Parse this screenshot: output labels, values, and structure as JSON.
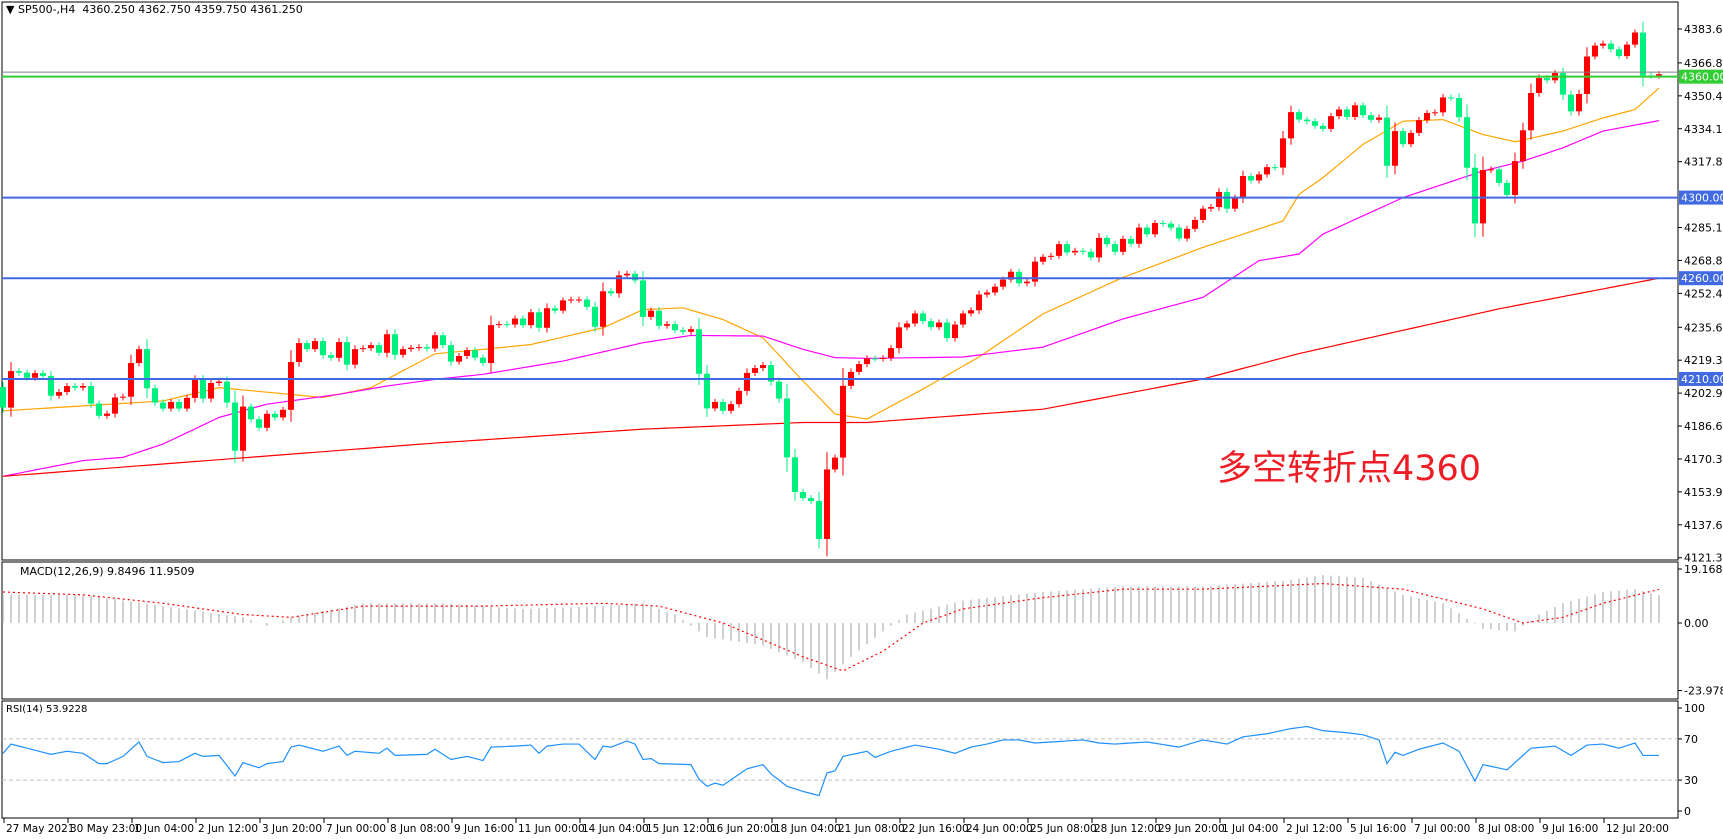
{
  "header": {
    "symbol": "SP500-,H4",
    "ohlc": "4360.250 4362.750 4359.750 4361.250",
    "collapse_icon": "triangle-down-icon"
  },
  "annotation": "多空转折点4360",
  "colors": {
    "bull_candle": "#ff0000",
    "bear_candle": "#00f080",
    "ma_fast": "#ffa500",
    "ma_mid": "#ff00ff",
    "ma_slow": "#ff0000",
    "level_line": "#4169e1",
    "pivot_line": "#32cd32",
    "macd_hist": "#c0c0c0",
    "macd_signal": "#ff0000",
    "rsi_line": "#1e90ff"
  },
  "chart_data": [
    {
      "type": "candlestick",
      "symbol": "SP500-",
      "timeframe": "H4",
      "last_bar": {
        "open": 4360.25,
        "high": 4362.75,
        "low": 4359.75,
        "close": 4361.25
      },
      "close": [
        4195.8,
        4213.9,
        4213.1,
        4210.6,
        4212.9,
        4211.5,
        4201.7,
        4203.5,
        4206.5,
        4205.7,
        4206.5,
        4197.8,
        4191.7,
        4192.8,
        4200.8,
        4201.2,
        4217.9,
        4224.8,
        4205.4,
        4198.3,
        4195.3,
        4198.6,
        4195.3,
        4200.6,
        4209.6,
        4200.3,
        4208.0,
        4208.7,
        4198.3,
        4174.4,
        4196.3,
        4190.0,
        4185.8,
        4192.7,
        4190.9,
        4194.7,
        4218.4,
        4227.8,
        4224.8,
        4228.8,
        4221.8,
        4220.5,
        4228.3,
        4217.1,
        4224.8,
        4225.3,
        4226.8,
        4223.0,
        4232.2,
        4222.0,
        4224.8,
        4225.5,
        4225.8,
        4225.1,
        4231.7,
        4226.8,
        4218.6,
        4221.4,
        4224.3,
        4220.6,
        4217.9,
        4236.7,
        4237.2,
        4237.0,
        4240.0,
        4236.7,
        4243.1,
        4235.4,
        4245.1,
        4243.9,
        4249.0,
        4249.4,
        4249.4,
        4245.8,
        4235.9,
        4253.5,
        4252.5,
        4261.4,
        4262.2,
        4258.9,
        4240.8,
        4243.9,
        4236.4,
        4237.2,
        4234.2,
        4233.4,
        4234.7,
        4212.6,
        4195.4,
        4198.6,
        4194.2,
        4197.5,
        4204.1,
        4213.0,
        4215.4,
        4216.9,
        4208.7,
        4200.3,
        4171.1,
        4153.9,
        4150.9,
        4149.4,
        4130.6,
        4165.1,
        4171.0,
        4206.6,
        4213.5,
        4217.4,
        4220.2,
        4220.1,
        4220.4,
        4225.3,
        4235.6,
        4237.5,
        4242.5,
        4238.7,
        4235.7,
        4238.0,
        4230.3,
        4237.0,
        4242.5,
        4244.1,
        4251.9,
        4252.9,
        4255.8,
        4259.3,
        4263.2,
        4257.5,
        4258.3,
        4268.2,
        4270.6,
        4271.1,
        4276.9,
        4272.8,
        4273.6,
        4273.1,
        4270.3,
        4280.0,
        4276.9,
        4273.1,
        4279.5,
        4277.1,
        4285.1,
        4281.8,
        4287.4,
        4287.1,
        4285.1,
        4279.7,
        4284.5,
        4288.9,
        4294.5,
        4295.3,
        4302.8,
        4294.5,
        4300.0,
        4310.7,
        4308.5,
        4311.5,
        4315.1,
        4314.9,
        4329.4,
        4342.4,
        4338.7,
        4337.9,
        4335.6,
        4334.1,
        4340.4,
        4343.7,
        4340.0,
        4345.8,
        4340.9,
        4338.6,
        4339.7,
        4315.8,
        4333.0,
        4326.5,
        4332.1,
        4338.4,
        4342.0,
        4342.3,
        4349.7,
        4349.4,
        4339.9,
        4314.8,
        4287.2,
        4313.7,
        4314.0,
        4307.3,
        4301.3,
        4318.1,
        4333.4,
        4351.9,
        4359.3,
        4358.2,
        4361.8,
        4351.1,
        4342.8,
        4351.4,
        4370.0,
        4375.4,
        4376.4,
        4373.6,
        4370.2,
        4375.9,
        4381.9,
        4360.6,
        4360.5,
        4361.25
      ],
      "moving_averages": [
        {
          "color_key": "ma_fast",
          "points": [
            [
              0,
              4194.2
            ],
            [
              20,
              4199.1
            ],
            [
              27,
              4205.7
            ],
            [
              40,
              4200.8
            ],
            [
              46,
              4205.7
            ],
            [
              54,
              4222.5
            ],
            [
              60,
              4224.7
            ],
            [
              66,
              4227.1
            ],
            [
              75,
              4235.4
            ],
            [
              80,
              4244.4
            ],
            [
              85,
              4245.3
            ],
            [
              90,
              4239.5
            ],
            [
              95,
              4230.4
            ],
            [
              100,
              4209.0
            ],
            [
              104,
              4192.6
            ],
            [
              108,
              4190.1
            ],
            [
              115,
              4205.0
            ],
            [
              122,
              4220.9
            ],
            [
              130,
              4242.3
            ],
            [
              140,
              4260.4
            ],
            [
              150,
              4275.3
            ],
            [
              160,
              4288.4
            ],
            [
              162,
              4301.6
            ],
            [
              165,
              4309.9
            ],
            [
              170,
              4326.4
            ],
            [
              175,
              4337.9
            ],
            [
              180,
              4338.7
            ],
            [
              185,
              4331.3
            ],
            [
              189,
              4327.7
            ],
            [
              195,
              4333.0
            ],
            [
              200,
              4339.5
            ],
            [
              204,
              4343.7
            ],
            [
              207,
              4354.4
            ]
          ]
        },
        {
          "color_key": "ma_mid",
          "points": [
            [
              0,
              4161.7
            ],
            [
              10,
              4169.5
            ],
            [
              15,
              4171.1
            ],
            [
              20,
              4177.7
            ],
            [
              27,
              4190.9
            ],
            [
              33,
              4197.5
            ],
            [
              42,
              4202.4
            ],
            [
              48,
              4206.5
            ],
            [
              54,
              4209.8
            ],
            [
              60,
              4212.3
            ],
            [
              70,
              4218.9
            ],
            [
              80,
              4228.0
            ],
            [
              86,
              4231.6
            ],
            [
              95,
              4231.3
            ],
            [
              100,
              4224.7
            ],
            [
              104,
              4220.6
            ],
            [
              108,
              4220.2
            ],
            [
              120,
              4220.9
            ],
            [
              130,
              4225.8
            ],
            [
              140,
              4239.8
            ],
            [
              150,
              4250.5
            ],
            [
              157,
              4268.7
            ],
            [
              162,
              4272.0
            ],
            [
              165,
              4281.9
            ],
            [
              175,
              4300.0
            ],
            [
              185,
              4313.2
            ],
            [
              190,
              4318.1
            ],
            [
              195,
              4324.7
            ],
            [
              200,
              4333.0
            ],
            [
              207,
              4338.2
            ]
          ]
        },
        {
          "color_key": "ma_slow",
          "points": [
            [
              0,
              4161.7
            ],
            [
              54,
              4178.2
            ],
            [
              80,
              4185.1
            ],
            [
              100,
              4188.4
            ],
            [
              108,
              4188.4
            ],
            [
              130,
              4195.0
            ],
            [
              150,
              4210.0
            ],
            [
              162,
              4222.6
            ],
            [
              187,
              4244.8
            ],
            [
              207,
              4260.0
            ]
          ]
        }
      ],
      "horizontal_levels": [
        {
          "value": 4360,
          "label": "4360.000",
          "color_key": "pivot_line"
        },
        {
          "value": 4300,
          "label": "4300.000",
          "color_key": "level_line"
        },
        {
          "value": 4260,
          "label": "4260.000",
          "color_key": "level_line"
        },
        {
          "value": 4210,
          "label": "4210.000",
          "color_key": "level_line"
        }
      ],
      "y_ticks": [
        "4383.655",
        "4366.825",
        "4350.490",
        "4334.155",
        "4317.820",
        "4285.150",
        "4268.815",
        "4252.480",
        "4235.650",
        "4219.315",
        "4202.980",
        "4186.645",
        "4170.310",
        "4153.975",
        "4137.640",
        "4121.305"
      ],
      "ylim": [
        4121.305,
        4383.655
      ],
      "x_ticks": [
        "27 May 2021",
        "30 May 23:00",
        "1 Jun 04:00",
        "2 Jun 12:00",
        "3 Jun 20:00",
        "7 Jun 00:00",
        "8 Jun 08:00",
        "9 Jun 16:00",
        "11 Jun 00:00",
        "14 Jun 04:00",
        "15 Jun 12:00",
        "16 Jun 20:00",
        "18 Jun 04:00",
        "21 Jun 08:00",
        "22 Jun 16:00",
        "24 Jun 00:00",
        "25 Jun 08:00",
        "28 Jun 12:00",
        "29 Jun 20:00",
        "1 Jul 04:00",
        "2 Jul 12:00",
        "5 Jul 16:00",
        "7 Jul 00:00",
        "8 Jul 08:00",
        "9 Jul 16:00",
        "12 Jul 20:00"
      ]
    },
    {
      "type": "bar+line",
      "title": "MACD(12,26,9) 9.8496 11.9509",
      "y_ticks": [
        "19.1681",
        "0.00",
        "-23.9781"
      ],
      "ylim": [
        -23.9781,
        19.1681
      ],
      "histogram_points": [
        [
          0,
          10
        ],
        [
          10,
          10
        ],
        [
          20,
          6
        ],
        [
          30,
          2
        ],
        [
          33,
          -1
        ],
        [
          36,
          2
        ],
        [
          45,
          7
        ],
        [
          55,
          7
        ],
        [
          65,
          5
        ],
        [
          75,
          6
        ],
        [
          80,
          7
        ],
        [
          84,
          3
        ],
        [
          88,
          -5
        ],
        [
          95,
          -8
        ],
        [
          100,
          -14
        ],
        [
          103,
          -20
        ],
        [
          106,
          -12
        ],
        [
          110,
          -3
        ],
        [
          113,
          3
        ],
        [
          120,
          8
        ],
        [
          130,
          11
        ],
        [
          140,
          13
        ],
        [
          150,
          13
        ],
        [
          160,
          15
        ],
        [
          165,
          17
        ],
        [
          170,
          16
        ],
        [
          175,
          10
        ],
        [
          180,
          7
        ],
        [
          185,
          -2
        ],
        [
          189,
          -3
        ],
        [
          192,
          3
        ],
        [
          195,
          7
        ],
        [
          200,
          11
        ],
        [
          204,
          12
        ],
        [
          207,
          9.8496
        ]
      ],
      "signal_points": [
        [
          0,
          11
        ],
        [
          10,
          10
        ],
        [
          20,
          7
        ],
        [
          30,
          3
        ],
        [
          36,
          2
        ],
        [
          45,
          6
        ],
        [
          60,
          6
        ],
        [
          75,
          7
        ],
        [
          82,
          6
        ],
        [
          90,
          0
        ],
        [
          100,
          -12
        ],
        [
          105,
          -17
        ],
        [
          110,
          -10
        ],
        [
          115,
          0
        ],
        [
          120,
          5
        ],
        [
          130,
          9
        ],
        [
          140,
          12
        ],
        [
          150,
          12
        ],
        [
          165,
          14
        ],
        [
          175,
          12
        ],
        [
          185,
          5
        ],
        [
          190,
          0
        ],
        [
          195,
          2
        ],
        [
          200,
          7
        ],
        [
          207,
          11.9509
        ]
      ]
    },
    {
      "type": "line",
      "title": "RSI(14) 53.9228",
      "y_ticks": [
        "100",
        "70",
        "30",
        "0"
      ],
      "ylim": [
        0,
        100
      ],
      "levels": [
        70,
        30
      ],
      "points": [
        [
          0,
          56
        ],
        [
          1,
          65
        ],
        [
          6,
          55
        ],
        [
          8,
          58
        ],
        [
          10,
          56
        ],
        [
          12,
          46
        ],
        [
          13,
          46
        ],
        [
          15,
          53
        ],
        [
          17,
          67
        ],
        [
          18,
          53
        ],
        [
          20,
          47
        ],
        [
          22,
          48
        ],
        [
          24,
          56
        ],
        [
          25,
          53
        ],
        [
          27,
          54
        ],
        [
          29,
          34
        ],
        [
          30,
          47
        ],
        [
          32,
          42
        ],
        [
          33,
          46
        ],
        [
          35,
          48
        ],
        [
          36,
          62
        ],
        [
          37,
          64
        ],
        [
          40,
          58
        ],
        [
          42,
          63
        ],
        [
          43,
          54
        ],
        [
          44,
          58
        ],
        [
          47,
          56
        ],
        [
          48,
          61
        ],
        [
          49,
          54
        ],
        [
          53,
          55
        ],
        [
          54,
          60
        ],
        [
          56,
          50
        ],
        [
          58,
          53
        ],
        [
          60,
          49
        ],
        [
          61,
          62
        ],
        [
          64,
          63
        ],
        [
          66,
          64
        ],
        [
          67,
          56
        ],
        [
          68,
          63
        ],
        [
          70,
          65
        ],
        [
          72,
          65
        ],
        [
          74,
          50
        ],
        [
          75,
          63
        ],
        [
          76,
          62
        ],
        [
          78,
          68
        ],
        [
          79,
          65
        ],
        [
          80,
          50
        ],
        [
          81,
          51
        ],
        [
          82,
          46
        ],
        [
          86,
          45
        ],
        [
          87,
          31
        ],
        [
          88,
          24
        ],
        [
          89,
          27
        ],
        [
          90,
          25
        ],
        [
          93,
          41
        ],
        [
          95,
          45
        ],
        [
          96,
          36
        ],
        [
          98,
          24
        ],
        [
          100,
          19
        ],
        [
          102,
          15
        ],
        [
          103,
          37
        ],
        [
          104,
          39
        ],
        [
          105,
          53
        ],
        [
          108,
          58
        ],
        [
          109,
          52
        ],
        [
          111,
          58
        ],
        [
          114,
          64
        ],
        [
          117,
          60
        ],
        [
          119,
          56
        ],
        [
          121,
          62
        ],
        [
          123,
          65
        ],
        [
          125,
          69
        ],
        [
          127,
          69
        ],
        [
          129,
          66
        ],
        [
          135,
          69
        ],
        [
          137,
          66
        ],
        [
          139,
          65
        ],
        [
          143,
          67
        ],
        [
          147,
          62
        ],
        [
          150,
          69
        ],
        [
          153,
          65
        ],
        [
          155,
          72
        ],
        [
          158,
          75
        ],
        [
          161,
          80
        ],
        [
          163,
          82
        ],
        [
          165,
          78
        ],
        [
          168,
          76
        ],
        [
          170,
          74
        ],
        [
          172,
          69
        ],
        [
          173,
          46
        ],
        [
          174,
          57
        ],
        [
          175,
          54
        ],
        [
          177,
          60
        ],
        [
          180,
          66
        ],
        [
          182,
          58
        ],
        [
          184,
          29
        ],
        [
          185,
          45
        ],
        [
          188,
          40
        ],
        [
          191,
          61
        ],
        [
          194,
          63
        ],
        [
          196,
          54
        ],
        [
          198,
          64
        ],
        [
          200,
          65
        ],
        [
          202,
          61
        ],
        [
          204,
          66
        ],
        [
          205,
          54
        ],
        [
          207,
          53.9228
        ]
      ]
    }
  ]
}
